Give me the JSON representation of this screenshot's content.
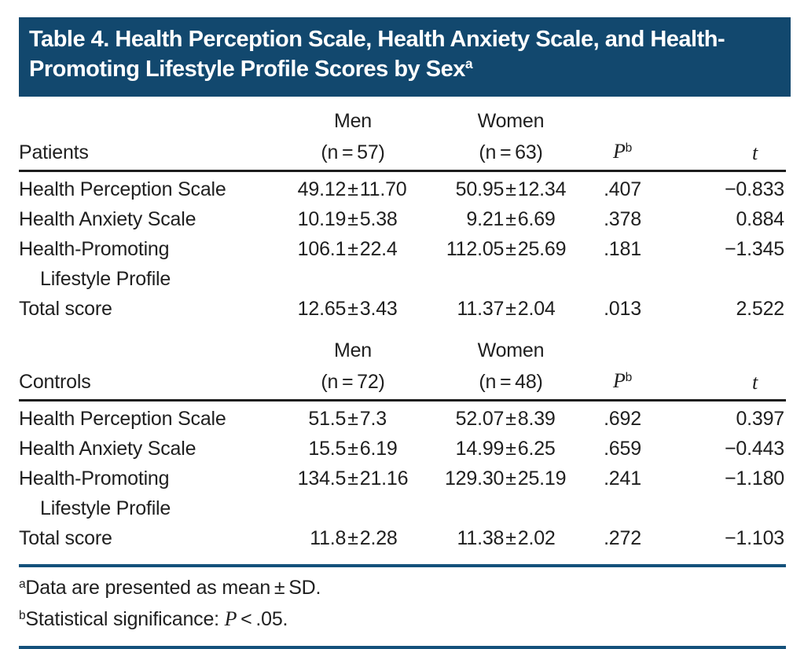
{
  "title": {
    "text": "Table 4. Health Perception Scale, Health Anxiety Scale, and Health-Promoting Lifestyle Profile Scores by Sex",
    "footnote_marker": "a"
  },
  "symbols": {
    "pm": "±"
  },
  "columns": {
    "p": "P",
    "p_sup": "b",
    "t": "t"
  },
  "sections": [
    {
      "group_label": "Patients",
      "men_label": "Men",
      "men_n": "(n = 57)",
      "women_label": "Women",
      "women_n": "(n = 63)",
      "rows": [
        {
          "label": "Health Perception Scale",
          "label2": "",
          "men_mean": "49.12",
          "men_sd": "11.70",
          "women_mean": "50.95",
          "women_sd": "12.34",
          "p": ".407",
          "t": "−0.833"
        },
        {
          "label": "Health Anxiety Scale",
          "label2": "",
          "men_mean": "10.19",
          "men_sd": "5.38",
          "women_mean": "9.21",
          "women_sd": "6.69",
          "p": ".378",
          "t": "0.884"
        },
        {
          "label": "Health-Promoting",
          "label2": "Lifestyle Profile",
          "men_mean": "106.1",
          "men_sd": "22.4",
          "women_mean": "112.05",
          "women_sd": "25.69",
          "p": ".181",
          "t": "−1.345"
        },
        {
          "label": "Total score",
          "label2": "",
          "men_mean": "12.65",
          "men_sd": "3.43",
          "women_mean": "11.37",
          "women_sd": "2.04",
          "p": ".013",
          "t": "2.522"
        }
      ]
    },
    {
      "group_label": "Controls",
      "men_label": "Men",
      "men_n": "(n = 72)",
      "women_label": "Women",
      "women_n": "(n = 48)",
      "rows": [
        {
          "label": "Health Perception Scale",
          "label2": "",
          "men_mean": "51.5",
          "men_sd": "7.3",
          "women_mean": "52.07",
          "women_sd": "8.39",
          "p": ".692",
          "t": "0.397"
        },
        {
          "label": "Health Anxiety Scale",
          "label2": "",
          "men_mean": "15.5",
          "men_sd": "6.19",
          "women_mean": "14.99",
          "women_sd": "6.25",
          "p": ".659",
          "t": "−0.443"
        },
        {
          "label": "Health-Promoting",
          "label2": "Lifestyle Profile",
          "men_mean": "134.5",
          "men_sd": "21.16",
          "women_mean": "129.30",
          "women_sd": "25.19",
          "p": ".241",
          "t": "−1.180"
        },
        {
          "label": "Total score",
          "label2": "",
          "men_mean": "11.8",
          "men_sd": "2.28",
          "women_mean": "11.38",
          "women_sd": "2.02",
          "p": ".272",
          "t": "−1.103"
        }
      ]
    }
  ],
  "footnotes": [
    {
      "marker": "a",
      "text": "Data are presented as mean ± SD."
    },
    {
      "marker": "b",
      "pre": "Statistical significance: ",
      "italic": "P",
      "post": " < .05."
    }
  ],
  "colors": {
    "title_bg": "#12486E",
    "rule_blue": "#14517B",
    "rule_black": "#1d1d1d",
    "text": "#1f1f1f",
    "title_text": "#ffffff"
  }
}
